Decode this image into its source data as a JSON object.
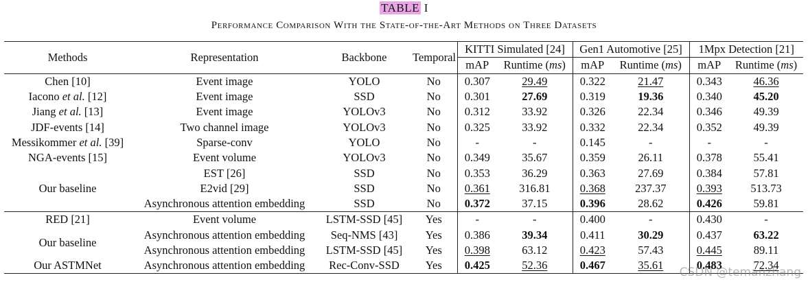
{
  "caption": {
    "label": "TABLE",
    "number": "I",
    "title": "Performance Comparison With the State-of-the-Art Methods on Three Datasets"
  },
  "headers": {
    "methods": "Methods",
    "representation": "Representation",
    "backbone": "Backbone",
    "temporal": "Temporal",
    "datasets": [
      "KITTI Simulated [24]",
      "Gen1 Automotive [25]",
      "1Mpx Detection [21]"
    ],
    "map": "mAP",
    "runtime": "Runtime (ms)"
  },
  "rows": [
    {
      "method": "Chen [10]",
      "rep": "Event image",
      "backbone": "YOLO",
      "temporal": "No",
      "k_map": "0.307",
      "k_rt": "29.49",
      "g_map": "0.322",
      "g_rt": "21.47",
      "m_map": "0.343",
      "m_rt": "46.36"
    },
    {
      "method": "Iacono et al. [12]",
      "rep": "Event image",
      "backbone": "SSD",
      "temporal": "No",
      "k_map": "0.301",
      "k_rt": "27.69",
      "g_map": "0.319",
      "g_rt": "19.36",
      "m_map": "0.340",
      "m_rt": "45.20"
    },
    {
      "method": "Jiang et al. [13]",
      "rep": "Event image",
      "backbone": "YOLOv3",
      "temporal": "No",
      "k_map": "0.312",
      "k_rt": "33.92",
      "g_map": "0.326",
      "g_rt": "22.34",
      "m_map": "0.346",
      "m_rt": "49.39"
    },
    {
      "method": "JDF-events [14]",
      "rep": "Two channel image",
      "backbone": "YOLOv3",
      "temporal": "No",
      "k_map": "0.325",
      "k_rt": "33.92",
      "g_map": "0.332",
      "g_rt": "22.34",
      "m_map": "0.352",
      "m_rt": "49.39"
    },
    {
      "method": "Messikommer et al. [39]",
      "rep": "Sparse-conv",
      "backbone": "YOLO",
      "temporal": "No",
      "k_map": "-",
      "k_rt": "-",
      "g_map": "0.145",
      "g_rt": "-",
      "m_map": "-",
      "m_rt": "-"
    },
    {
      "method": "NGA-events [15]",
      "rep": "Event volume",
      "backbone": "YOLOv3",
      "temporal": "No",
      "k_map": "0.349",
      "k_rt": "35.67",
      "g_map": "0.359",
      "g_rt": "26.11",
      "m_map": "0.378",
      "m_rt": "55.41"
    },
    {
      "method": "Our baseline",
      "rep": "EST [26]",
      "backbone": "SSD",
      "temporal": "No",
      "k_map": "0.353",
      "k_rt": "36.29",
      "g_map": "0.363",
      "g_rt": "27.69",
      "m_map": "0.384",
      "m_rt": "57.81"
    },
    {
      "method": "",
      "rep": "E2vid [29]",
      "backbone": "SSD",
      "temporal": "No",
      "k_map": "0.361",
      "k_rt": "316.81",
      "g_map": "0.368",
      "g_rt": "237.37",
      "m_map": "0.393",
      "m_rt": "513.73"
    },
    {
      "method": "",
      "rep": "Asynchronous attention embedding",
      "backbone": "SSD",
      "temporal": "No",
      "k_map": "0.372",
      "k_rt": "37.15",
      "g_map": "0.396",
      "g_rt": "28.62",
      "m_map": "0.426",
      "m_rt": "59.81"
    },
    {
      "method": "RED [21]",
      "rep": "Event volume",
      "backbone": "LSTM-SSD [45]",
      "temporal": "Yes",
      "k_map": "-",
      "k_rt": "-",
      "g_map": "0.400",
      "g_rt": "-",
      "m_map": "0.430",
      "m_rt": "-"
    },
    {
      "method": "Our baseline",
      "rep": "Asynchronous attention embedding",
      "backbone": "Seq-NMS [43]",
      "temporal": "Yes",
      "k_map": "0.386",
      "k_rt": "39.34",
      "g_map": "0.411",
      "g_rt": "30.29",
      "m_map": "0.437",
      "m_rt": "63.22"
    },
    {
      "method": "",
      "rep": "Asynchronous attention embedding",
      "backbone": "LSTM-SSD [45]",
      "temporal": "Yes",
      "k_map": "0.398",
      "k_rt": "63.12",
      "g_map": "0.423",
      "g_rt": "57.43",
      "m_map": "0.445",
      "m_rt": "89.11"
    },
    {
      "method": "Our ASTMNet",
      "rep": "Asynchronous attention embedding",
      "backbone": "Rec-Conv-SSD",
      "temporal": "Yes",
      "k_map": "0.425",
      "k_rt": "52.36",
      "g_map": "0.467",
      "g_rt": "35.61",
      "m_map": "0.483",
      "m_rt": "72.34"
    }
  ],
  "watermark": "CSDN @temanzhang"
}
